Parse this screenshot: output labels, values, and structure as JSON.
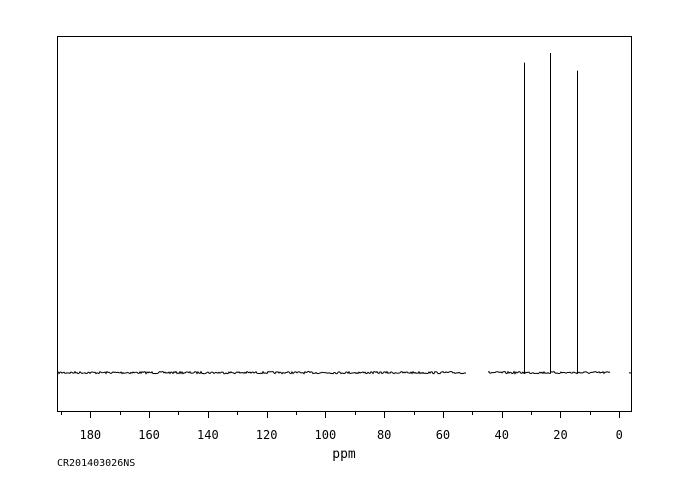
{
  "chart_data": {
    "type": "line",
    "title": "",
    "xlabel": "ppm",
    "ylabel": "",
    "sample_id": "CR201403026NS",
    "x_reversed": true,
    "xlim": [
      191,
      -4
    ],
    "ylim": [
      -0.12,
      1.05
    ],
    "grid": false,
    "x_ticks": [
      180,
      160,
      140,
      120,
      100,
      80,
      60,
      40,
      20,
      0
    ],
    "x_minor_step": 10,
    "baseline_gaps": [
      [
        52,
        45
      ],
      [
        3,
        -3
      ]
    ],
    "series": [
      {
        "peaks": [
          {
            "ppm": 32.4,
            "intensity": 0.97
          },
          {
            "ppm": 23.4,
            "intensity": 1.0
          },
          {
            "ppm": 14.3,
            "intensity": 0.945
          }
        ]
      }
    ]
  }
}
